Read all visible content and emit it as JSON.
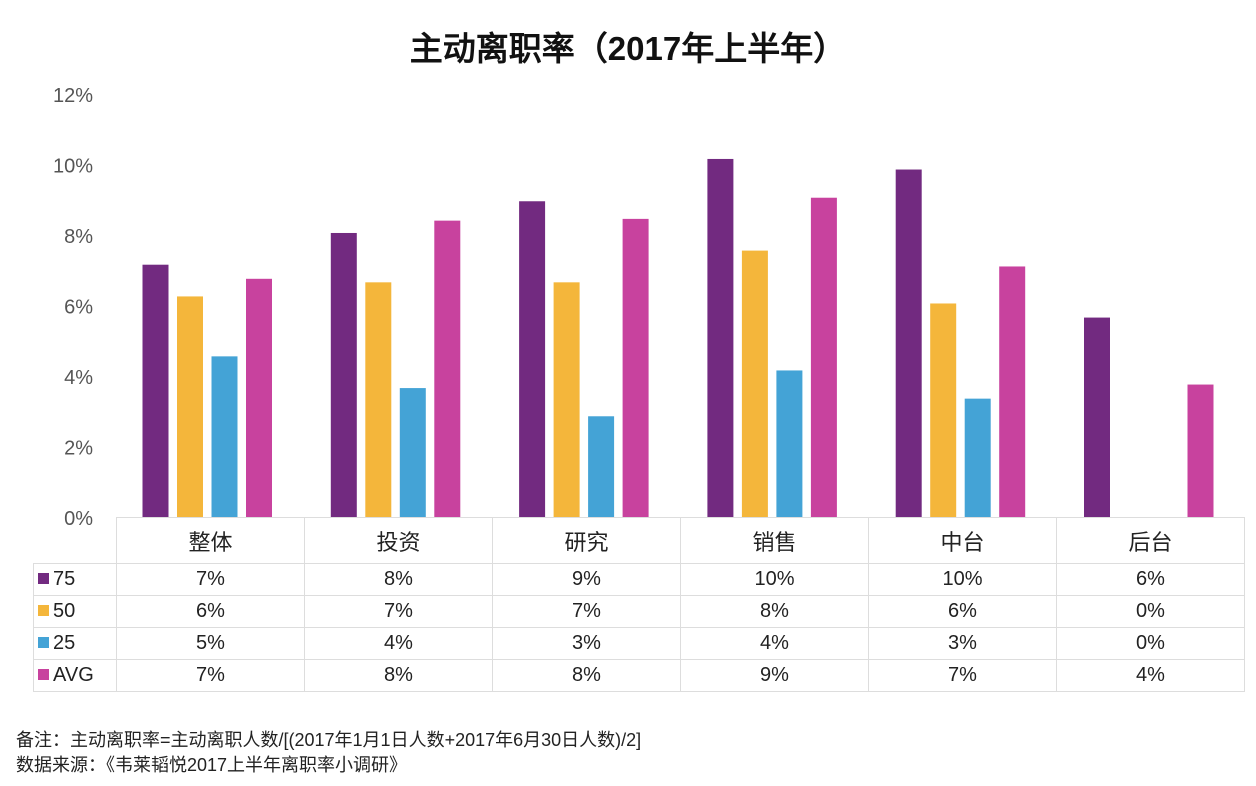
{
  "chart_data": {
    "type": "bar",
    "title": "主动离职率（2017年上半年）",
    "categories": [
      "整体",
      "投资",
      "研究",
      "销售",
      "中台",
      "后台"
    ],
    "ylim": [
      0,
      12
    ],
    "yticks": [
      "0%",
      "2%",
      "4%",
      "6%",
      "8%",
      "10%",
      "12%"
    ],
    "grid": false,
    "legend": "table-left",
    "series": [
      {
        "name": "75",
        "color": "#722a80",
        "values": [
          7.2,
          8.1,
          9.0,
          10.2,
          9.9,
          5.7
        ],
        "labels": [
          "7%",
          "8%",
          "9%",
          "10%",
          "10%",
          "6%"
        ]
      },
      {
        "name": "50",
        "color": "#f4b63b",
        "values": [
          6.3,
          6.7,
          6.7,
          7.6,
          6.1,
          0
        ],
        "labels": [
          "6%",
          "7%",
          "7%",
          "8%",
          "6%",
          "0%"
        ]
      },
      {
        "name": "25",
        "color": "#44a3d6",
        "values": [
          4.6,
          3.7,
          2.9,
          4.2,
          3.4,
          0
        ],
        "labels": [
          "5%",
          "4%",
          "3%",
          "4%",
          "3%",
          "0%"
        ]
      },
      {
        "name": "AVG",
        "color": "#c8429e",
        "values": [
          6.8,
          8.45,
          8.5,
          9.1,
          7.15,
          3.8
        ],
        "labels": [
          "7%",
          "8%",
          "8%",
          "9%",
          "7%",
          "4%"
        ]
      }
    ]
  },
  "notes": {
    "line1": "备注：主动离职率=主动离职人数/[(2017年1月1日人数+2017年6月30日人数)/2]",
    "line2": "数据来源：《韦莱韬悦2017上半年离职率小调研》"
  }
}
